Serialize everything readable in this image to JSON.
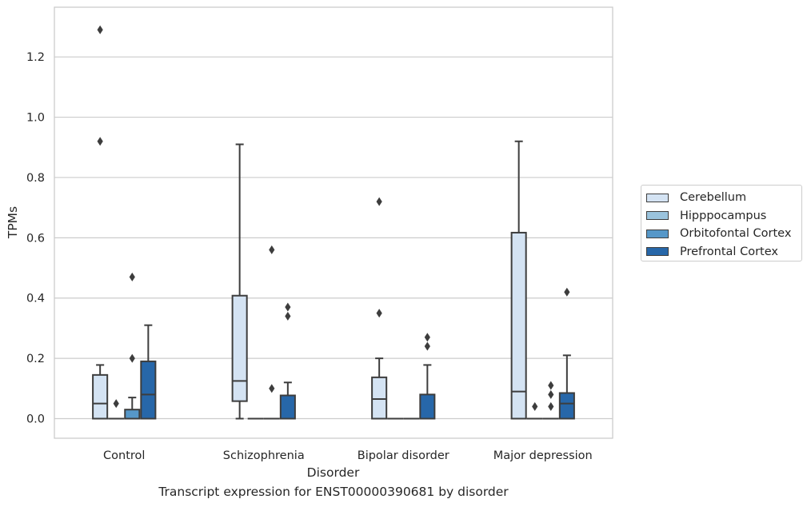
{
  "chart_data": {
    "type": "box",
    "xlabel": "Disorder",
    "ylabel": "TPMs",
    "ylim": [
      -0.065,
      1.365
    ],
    "yticks": [
      "0.0",
      "0.2",
      "0.4",
      "0.6",
      "0.8",
      "1.0",
      "1.2"
    ],
    "grid": "horizontal",
    "legend_position": "right",
    "categories": [
      "Control",
      "Schizophrenia",
      "Bipolar disorder",
      "Major depression"
    ],
    "series": [
      {
        "name": "Cerebellum",
        "color": "#d4e3f3",
        "boxes": [
          {
            "whislo": 0.0,
            "q1": 0.0,
            "median": 0.05,
            "q3": 0.145,
            "whishi": 0.178,
            "fliers": [
              0.92,
              1.29
            ]
          },
          {
            "whislo": 0.0,
            "q1": 0.058,
            "median": 0.125,
            "q3": 0.408,
            "whishi": 0.91,
            "fliers": []
          },
          {
            "whislo": 0.0,
            "q1": 0.0,
            "median": 0.065,
            "q3": 0.137,
            "whishi": 0.2,
            "fliers": [
              0.35,
              0.72
            ]
          },
          {
            "whislo": 0.0,
            "q1": 0.0,
            "median": 0.09,
            "q3": 0.617,
            "whishi": 0.92,
            "fliers": []
          }
        ]
      },
      {
        "name": "Hipppocampus",
        "color": "#9ac3dd",
        "boxes": [
          {
            "whislo": 0.0,
            "q1": 0.0,
            "median": 0.0,
            "q3": 0.0,
            "whishi": 0.0,
            "fliers": [
              0.05
            ]
          },
          {
            "whislo": 0.0,
            "q1": 0.0,
            "median": 0.0,
            "q3": 0.0,
            "whishi": 0.0,
            "fliers": []
          },
          {
            "whislo": 0.0,
            "q1": 0.0,
            "median": 0.0,
            "q3": 0.0,
            "whishi": 0.0,
            "fliers": []
          },
          {
            "whislo": 0.0,
            "q1": 0.0,
            "median": 0.0,
            "q3": 0.0,
            "whishi": 0.0,
            "fliers": [
              0.04
            ]
          }
        ]
      },
      {
        "name": "Orbitofontal Cortex",
        "color": "#5697c8",
        "boxes": [
          {
            "whislo": 0.0,
            "q1": 0.0,
            "median": 0.0,
            "q3": 0.03,
            "whishi": 0.07,
            "fliers": [
              0.2,
              0.47
            ]
          },
          {
            "whislo": 0.0,
            "q1": 0.0,
            "median": 0.0,
            "q3": 0.0,
            "whishi": 0.0,
            "fliers": [
              0.1,
              0.56
            ]
          },
          {
            "whislo": 0.0,
            "q1": 0.0,
            "median": 0.0,
            "q3": 0.0,
            "whishi": 0.0,
            "fliers": []
          },
          {
            "whislo": 0.0,
            "q1": 0.0,
            "median": 0.0,
            "q3": 0.0,
            "whishi": 0.0,
            "fliers": [
              0.04,
              0.08,
              0.11
            ]
          }
        ]
      },
      {
        "name": "Prefrontal Cortex",
        "color": "#2767a9",
        "boxes": [
          {
            "whislo": 0.0,
            "q1": 0.0,
            "median": 0.08,
            "q3": 0.19,
            "whishi": 0.31,
            "fliers": []
          },
          {
            "whislo": 0.0,
            "q1": 0.0,
            "median": 0.0,
            "q3": 0.077,
            "whishi": 0.12,
            "fliers": [
              0.34,
              0.37
            ]
          },
          {
            "whislo": 0.0,
            "q1": 0.0,
            "median": 0.0,
            "q3": 0.08,
            "whishi": 0.178,
            "fliers": [
              0.24,
              0.27
            ]
          },
          {
            "whislo": 0.0,
            "q1": 0.0,
            "median": 0.05,
            "q3": 0.085,
            "whishi": 0.21,
            "fliers": [
              0.42
            ]
          }
        ]
      }
    ]
  },
  "caption": "Transcript expression for ENST00000390681 by disorder"
}
